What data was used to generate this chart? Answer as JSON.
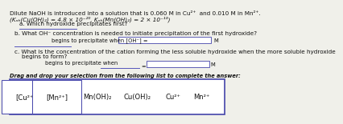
{
  "title_line1": "Dilute NaOH is introduced into a solution that is 0.060 M in Cu²⁺  and 0.010 M in Mn²⁺.",
  "title_line2": "(Kₙₕ(Cu(OH)₂) = 4.8 × 10⁻²⁰, Kₙₕ(Mn(OH)₂) = 2 × 10⁻¹³)",
  "q_a": "a. Which hydroxide precipitates first?",
  "q_b": "b. What OH⁻ concentration is needed to initiate precipitation of the first hydroxide?",
  "q_b_sub": "begins to precipitate when [OH⁻] =",
  "q_b_unit": "M",
  "q_c1": "c. What is the concentration of the cation forming the less soluble hydroxide when the more soluble hydroxide",
  "q_c2": "    begins to form?",
  "q_c_sub": "begins to precipitate when",
  "q_c_eq": "=",
  "q_c_unit": "M",
  "drag_label": "Drag and drop your selection from the following list to complete the answer:",
  "drag_items": [
    "[Cu²⁺]",
    "[Mn²⁺]",
    "Mn(OH)₂",
    "Cu(OH)₂",
    "Cu²⁺",
    "Mn²⁺"
  ],
  "bg_color": "#f0f0ea",
  "box_color": "#ffffff",
  "border_color": "#4444aa",
  "text_color": "#111111",
  "line_color": "#5555bb",
  "drag_label_color": "#111111"
}
